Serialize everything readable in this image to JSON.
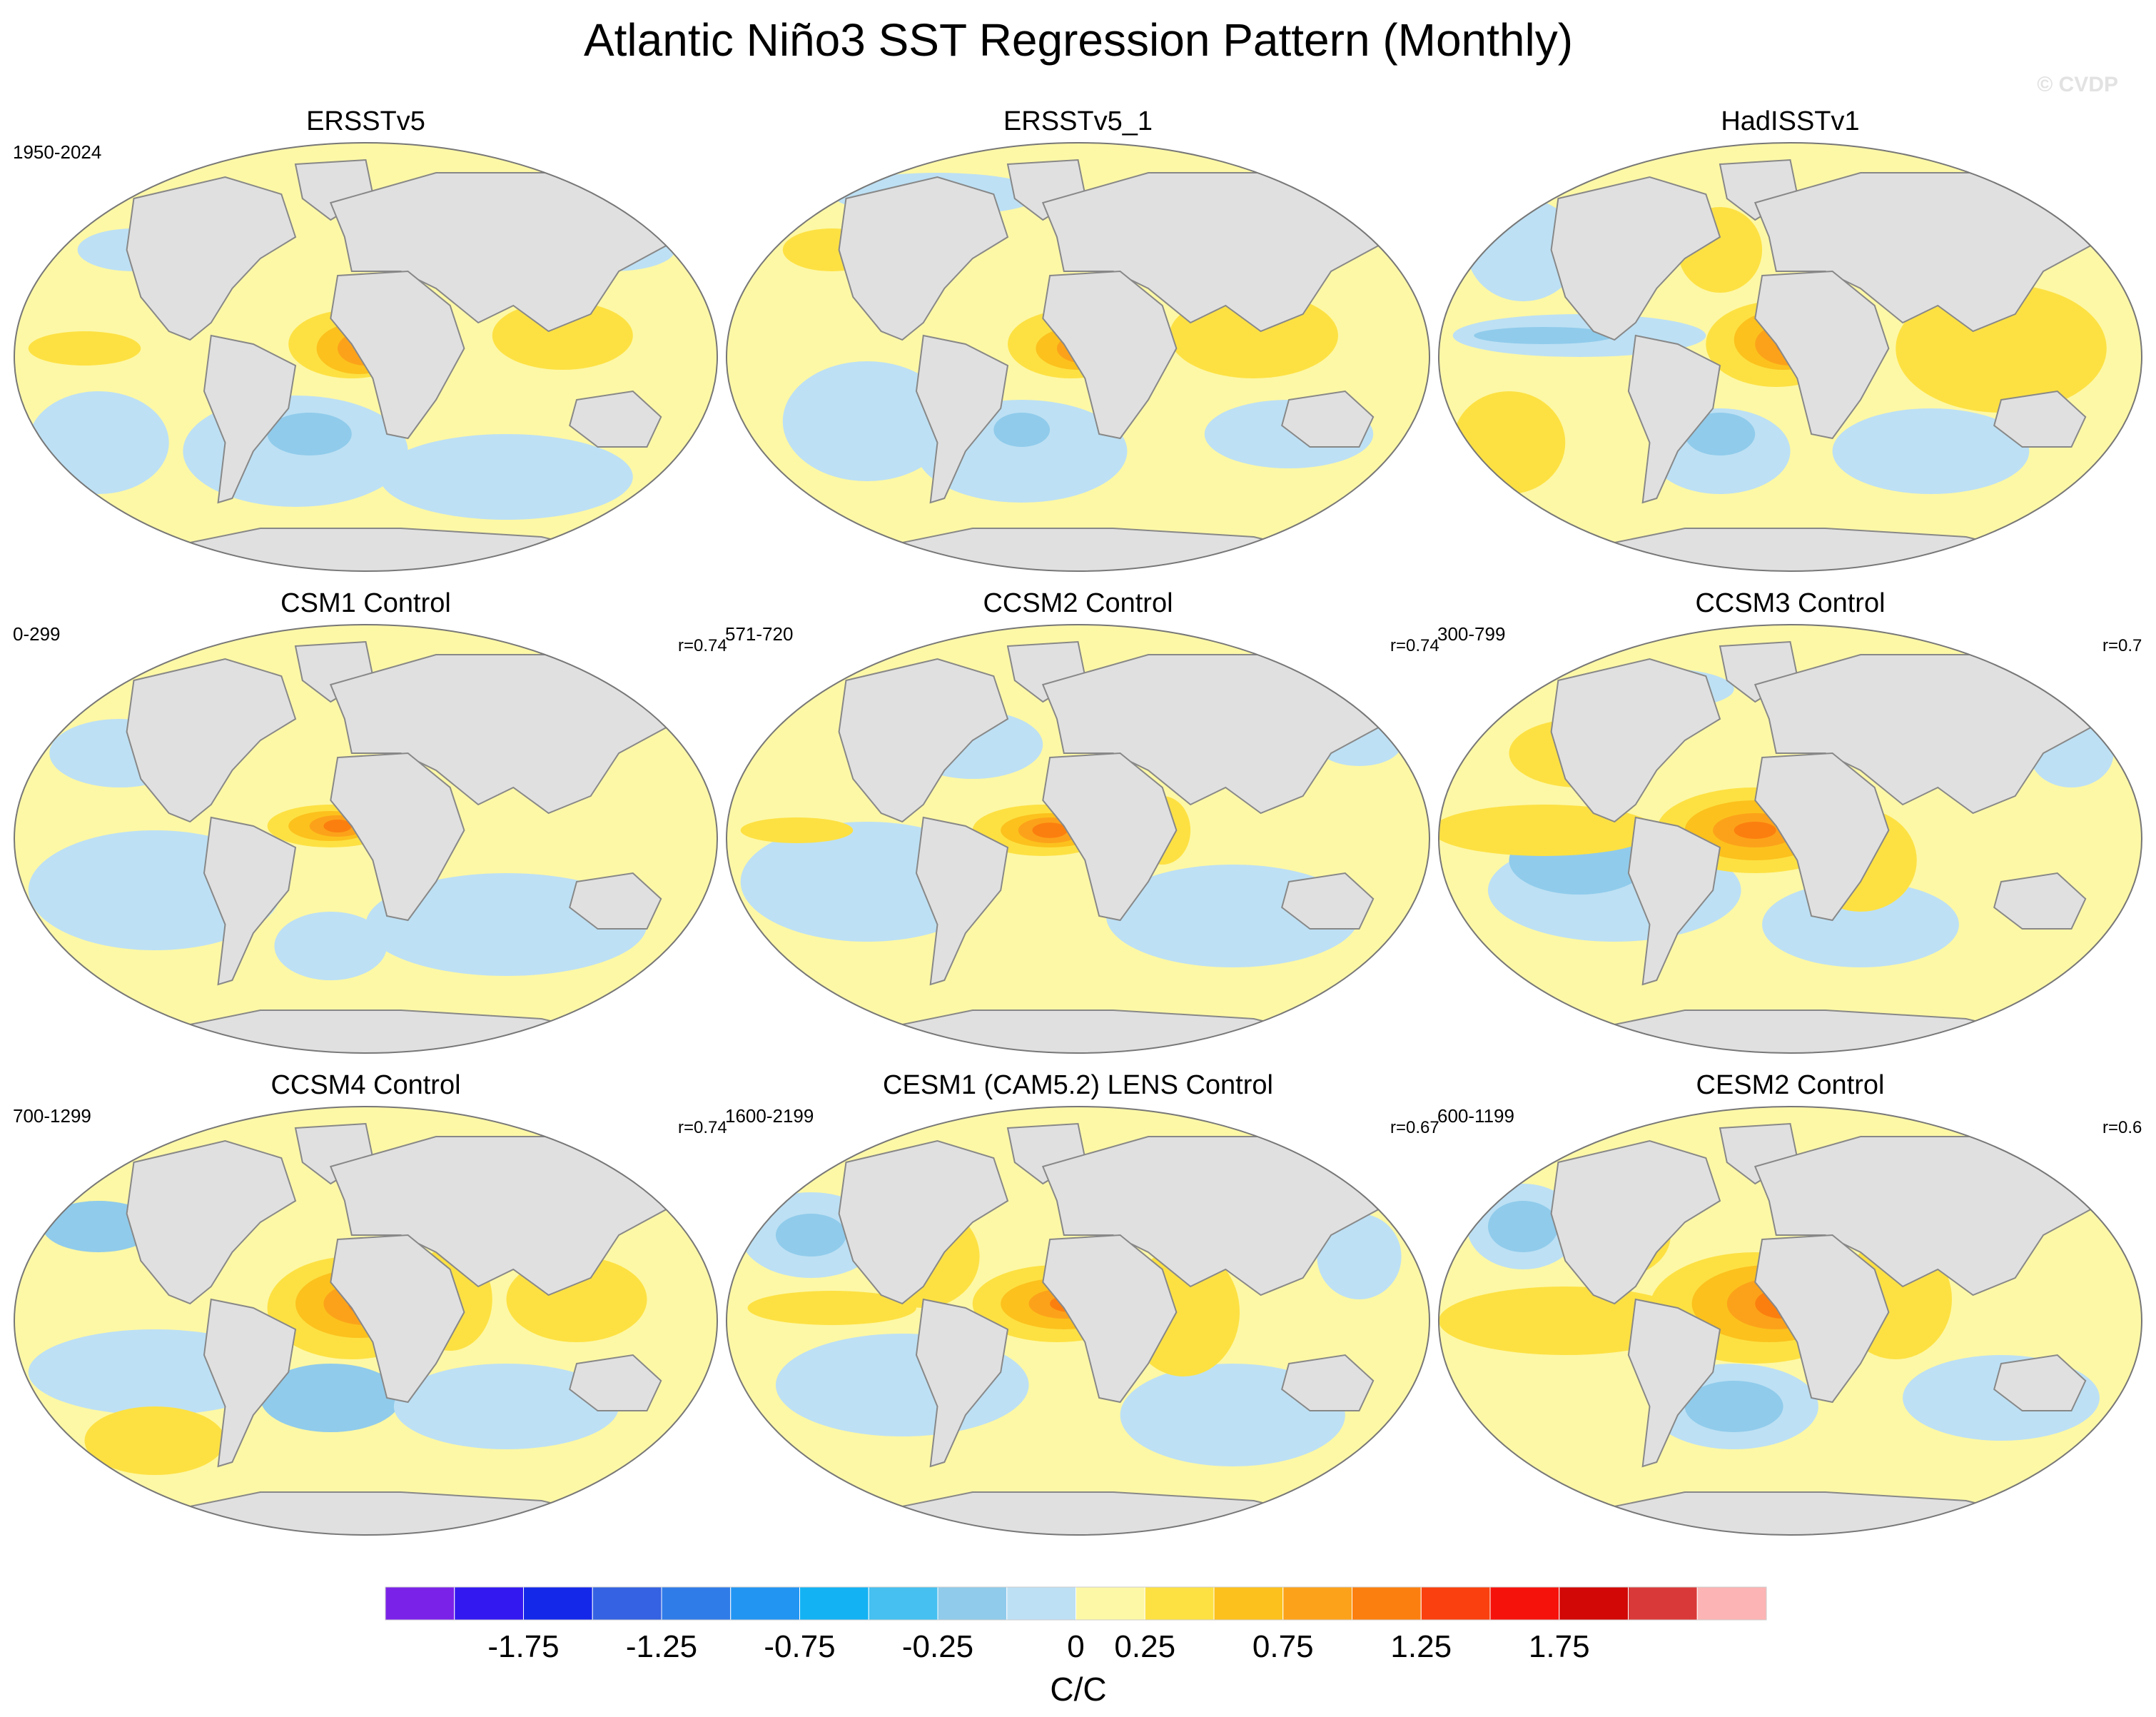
{
  "figure": {
    "title": "Atlantic Niño3 SST Regression Pattern (Monthly)",
    "watermark": "© CVDP"
  },
  "panels": [
    {
      "title": "ERSSTv5",
      "period": "1950-2024",
      "corr": "",
      "pattern": "obs"
    },
    {
      "title": "ERSSTv5_1",
      "period": "",
      "corr": "",
      "pattern": "obs1"
    },
    {
      "title": "HadISSTv1",
      "period": "",
      "corr": "",
      "pattern": "had"
    },
    {
      "title": "CSM1 Control",
      "period": "0-299",
      "corr": "r=0.74",
      "pattern": "csm1"
    },
    {
      "title": "CCSM2 Control",
      "period": "571-720",
      "corr": "r=0.74",
      "pattern": "ccsm2"
    },
    {
      "title": "CCSM3 Control",
      "period": "300-799",
      "corr": "r=0.7",
      "pattern": "ccsm3"
    },
    {
      "title": "CCSM4 Control",
      "period": "700-1299",
      "corr": "r=0.74",
      "pattern": "ccsm4"
    },
    {
      "title": "CESM1 (CAM5.2) LENS Control",
      "period": "1600-2199",
      "corr": "r=0.67",
      "pattern": "cesm1"
    },
    {
      "title": "CESM2 Control",
      "period": "600-1199",
      "corr": "r=0.6",
      "pattern": "cesm2"
    }
  ],
  "chart_data": {
    "type": "heatmap",
    "projection": "Robinson (global map)",
    "variable": "SST regression on Atlantic Niño3 index",
    "colorbar": {
      "unit_label": "C/C",
      "tick_labels": [
        "-1.75",
        "-1.25",
        "-0.75",
        "-0.25",
        "0",
        "0.25",
        "0.75",
        "1.25",
        "1.75"
      ],
      "colors": [
        "#7b22e8",
        "#3318f0",
        "#1428ea",
        "#3562e2",
        "#2f7ce8",
        "#2295f3",
        "#13b2f3",
        "#45c0f0",
        "#90cbeb",
        "#bde0f4",
        "#fdf8a6",
        "#fde143",
        "#fcc11d",
        "#fca21a",
        "#fb7f0f",
        "#f9400e",
        "#f5120a",
        "#d10806",
        "#d93a39",
        "#fdb4b4"
      ]
    },
    "land_color": "#e0e0e0",
    "coastline_color": "#888888"
  }
}
